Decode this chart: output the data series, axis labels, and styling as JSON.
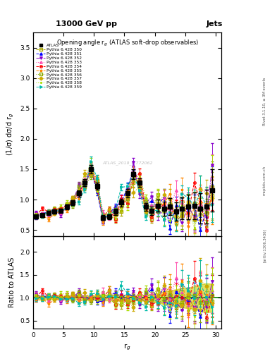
{
  "title_top": "13000 GeV pp",
  "title_right": "Jets",
  "plot_title": "Opening angle r$_g$ (ATLAS soft-drop observables)",
  "xlabel": "r$_g$",
  "ylabel_main": "(1/σ) dσ/d r$_g$",
  "ylabel_ratio": "Ratio to ATLAS",
  "watermark": "ATLAS_2019_I1772062",
  "rivet_label": "Rivet 3.1.10, ≥ 3M events",
  "arxiv_label": "[arXiv:1306.3436]",
  "mcplots_label": "mcplots.cern.ch",
  "xlim": [
    0,
    31
  ],
  "ylim_main": [
    0.4,
    3.75
  ],
  "ylim_ratio": [
    0.33,
    2.35
  ],
  "yticks_main": [
    0.5,
    1.0,
    1.5,
    2.0,
    2.5,
    3.0,
    3.5
  ],
  "yticks_ratio": [
    0.5,
    1.0,
    1.5,
    2.0
  ],
  "xticks": [
    0,
    5,
    10,
    15,
    20,
    25,
    30
  ],
  "atlas_color": "#000000",
  "ref_band_color": "#cccc00",
  "ratio_line_color": "#008800",
  "series": [
    {
      "label": "Pythia 6.428 350",
      "color": "#aaaa00",
      "marker": "s",
      "ls": "--",
      "filled": false
    },
    {
      "label": "Pythia 6.428 351",
      "color": "#0000ff",
      "marker": "^",
      "ls": "--",
      "filled": true
    },
    {
      "label": "Pythia 6.428 352",
      "color": "#8800cc",
      "marker": "v",
      "ls": "-.",
      "filled": true
    },
    {
      "label": "Pythia 6.428 353",
      "color": "#ff44aa",
      "marker": "^",
      "ls": ":",
      "filled": false
    },
    {
      "label": "Pythia 6.428 354",
      "color": "#ff0000",
      "marker": "o",
      "ls": "--",
      "filled": false
    },
    {
      "label": "Pythia 6.428 355",
      "color": "#ff8800",
      "marker": "*",
      "ls": "--",
      "filled": true
    },
    {
      "label": "Pythia 6.428 356",
      "color": "#88aa00",
      "marker": "s",
      "ls": ":",
      "filled": false
    },
    {
      "label": "Pythia 6.428 357",
      "color": "#ccaa00",
      "marker": "D",
      "ls": ":",
      "filled": true
    },
    {
      "label": "Pythia 6.428 358",
      "color": "#aadd00",
      "marker": ".",
      "ls": ":",
      "filled": true
    },
    {
      "label": "Pythia 6.428 359",
      "color": "#00bbaa",
      "marker": ">",
      "ls": "--",
      "filled": true
    }
  ],
  "x_data": [
    0.5,
    1.5,
    2.5,
    3.5,
    4.5,
    5.5,
    6.5,
    7.5,
    8.5,
    9.5,
    10.5,
    11.5,
    12.5,
    13.5,
    14.5,
    15.5,
    16.5,
    17.5,
    18.5,
    19.5,
    20.5,
    21.5,
    22.5,
    23.5,
    24.5,
    25.5,
    26.5,
    27.5,
    28.5,
    29.5
  ],
  "atlas_y": [
    0.72,
    0.74,
    0.78,
    0.8,
    0.82,
    0.88,
    0.95,
    1.1,
    1.28,
    1.5,
    1.22,
    0.7,
    0.72,
    0.8,
    0.95,
    1.1,
    1.42,
    1.28,
    0.88,
    0.82,
    0.9,
    0.85,
    0.88,
    0.8,
    0.85,
    0.88,
    0.9,
    0.85,
    0.88,
    1.15
  ],
  "atlas_yerr": [
    0.03,
    0.03,
    0.03,
    0.03,
    0.03,
    0.04,
    0.04,
    0.05,
    0.06,
    0.07,
    0.06,
    0.04,
    0.04,
    0.05,
    0.06,
    0.07,
    0.08,
    0.07,
    0.06,
    0.07,
    0.1,
    0.12,
    0.14,
    0.15,
    0.18,
    0.2,
    0.22,
    0.25,
    0.28,
    0.35
  ]
}
